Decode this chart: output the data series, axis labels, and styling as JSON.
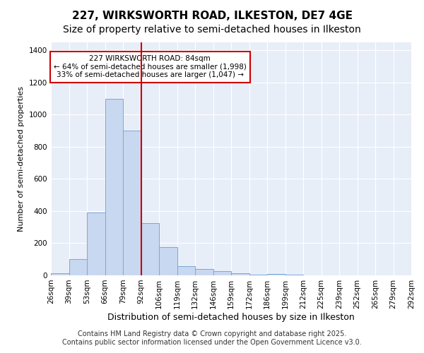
{
  "title": "227, WIRKSWORTH ROAD, ILKESTON, DE7 4GE",
  "subtitle": "Size of property relative to semi-detached houses in Ilkeston",
  "xlabel": "Distribution of semi-detached houses by size in Ilkeston",
  "ylabel": "Number of semi-detached properties",
  "footer_line1": "Contains HM Land Registry data © Crown copyright and database right 2025.",
  "footer_line2": "Contains public sector information licensed under the Open Government Licence v3.0.",
  "bin_labels": [
    "26sqm",
    "39sqm",
    "53sqm",
    "66sqm",
    "79sqm",
    "92sqm",
    "106sqm",
    "119sqm",
    "132sqm",
    "146sqm",
    "159sqm",
    "172sqm",
    "186sqm",
    "199sqm",
    "212sqm",
    "225sqm",
    "239sqm",
    "252sqm",
    "265sqm",
    "279sqm",
    "292sqm"
  ],
  "bar_heights": [
    15,
    100,
    390,
    1100,
    900,
    325,
    175,
    55,
    40,
    25,
    15,
    5,
    10,
    3,
    2,
    1,
    0,
    0,
    0,
    0
  ],
  "bar_color": "#c8d8f0",
  "bar_edgecolor": "#7aa8d8",
  "property_size_idx": 5,
  "vline_color": "#cc0000",
  "annotation_line1": "227 WIRKSWORTH ROAD: 84sqm",
  "annotation_line2": "← 64% of semi-detached houses are smaller (1,998)",
  "annotation_line3": "33% of semi-detached houses are larger (1,047) →",
  "annotation_box_color": "#ffffff",
  "annotation_box_edgecolor": "#cc0000",
  "ylim": [
    0,
    1450
  ],
  "yticks": [
    0,
    200,
    400,
    600,
    800,
    1000,
    1200,
    1400
  ],
  "fig_background_color": "#ffffff",
  "plot_background_color": "#e8eef8",
  "title_fontsize": 11,
  "subtitle_fontsize": 10,
  "ylabel_fontsize": 8,
  "xlabel_fontsize": 9,
  "tick_fontsize": 7.5,
  "footer_fontsize": 7
}
